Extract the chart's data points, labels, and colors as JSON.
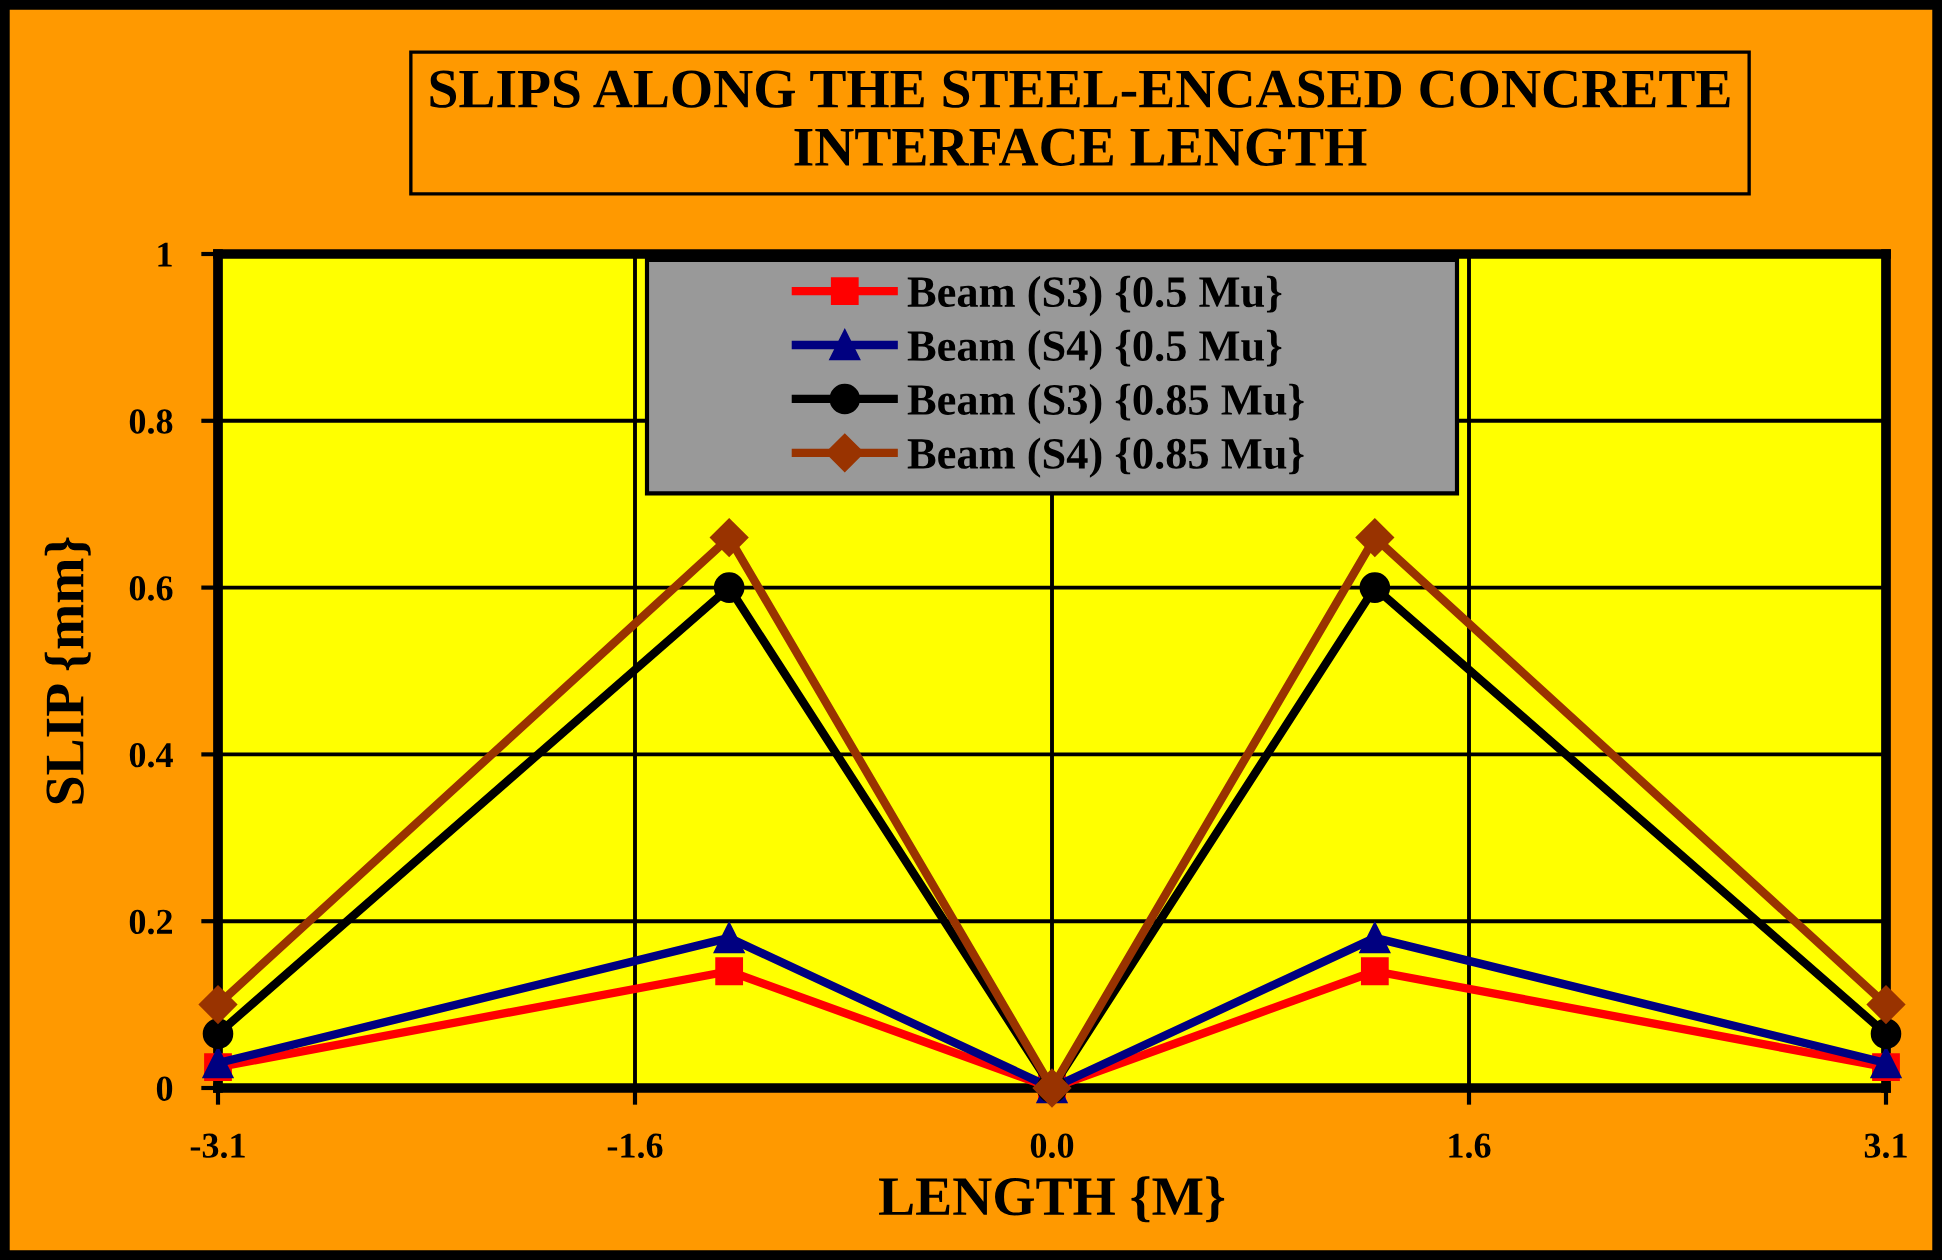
{
  "chart_data": {
    "type": "line",
    "title": "SLIPS ALONG THE STEEL-ENCASED CONCRETE\nINTERFACE LENGTH",
    "xlabel": "LENGTH {M}",
    "ylabel": "SLIP {mm}",
    "x": [
      -3.1,
      -1.2,
      0,
      1.2,
      3.1
    ],
    "xlim": [
      -3.1,
      3.1
    ],
    "xticks": [
      -3.1,
      {
        "value": -1.55,
        "label": "-1.6"
      },
      {
        "value": 0,
        "label": "0.0"
      },
      {
        "value": 1.55,
        "label": "1.6"
      },
      3.1
    ],
    "ylim": [
      0,
      1
    ],
    "yticks": [
      0,
      0.2,
      0.4,
      0.6,
      0.8,
      1
    ],
    "grid": true,
    "legend": "top",
    "line_style": "solid",
    "series": [
      {
        "name": "Beam (S3) {0.5 Mu}",
        "color": "#ff0000",
        "marker": "square",
        "values": [
          0.025,
          0.14,
          0,
          0.14,
          0.025
        ]
      },
      {
        "name": "Beam (S4) {0.5 Mu}",
        "color": "#000080",
        "marker": "triangle",
        "values": [
          0.03,
          0.18,
          0,
          0.18,
          0.03
        ]
      },
      {
        "name": "Beam (S3) {0.85 Mu}",
        "color": "#000000",
        "marker": "circle",
        "values": [
          0.065,
          0.6,
          0,
          0.6,
          0.065
        ]
      },
      {
        "name": "Beam (S4) {0.85 Mu}",
        "color": "#993300",
        "marker": "diamond",
        "values": [
          0.1,
          0.66,
          0,
          0.66,
          0.1
        ]
      }
    ]
  }
}
